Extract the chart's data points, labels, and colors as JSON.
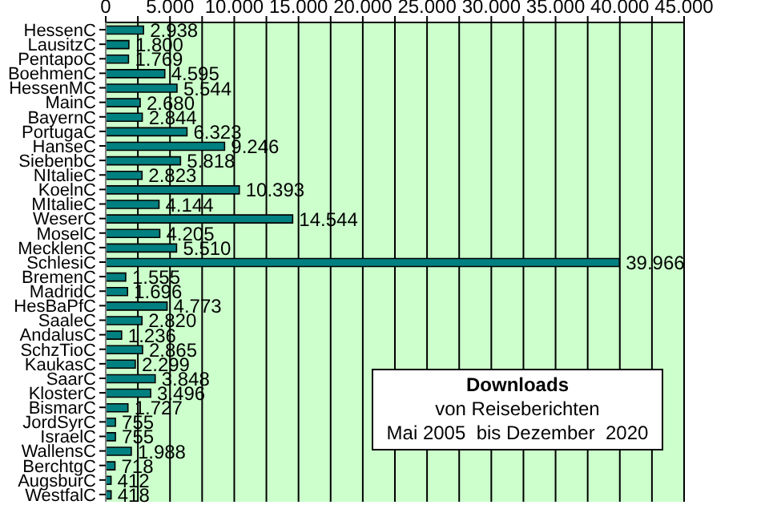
{
  "chart_data": {
    "type": "bar",
    "orientation": "horizontal",
    "title": "Downloads",
    "subtitle": "von Reiseberichten",
    "annotations": [
      "Mai 2005  bis Dezember  2020"
    ],
    "categories": [
      "HessenC",
      "LausitzC",
      "PentapoC",
      "BoehmenC",
      "HessenMC",
      "MainC",
      "BayernC",
      "PortugaC",
      "HanseC",
      "SiebenbC",
      "NItalieC",
      "KoelnC",
      "MItalieC",
      "WeserC",
      "MoselC",
      "MecklenC",
      "SchlesiC",
      "BremenC",
      "MadridC",
      "HesBaPfC",
      "SaaleC",
      "AndalusC",
      "SchzTioC",
      "KaukasC",
      "SaarC",
      "KlosterC",
      "BismarC",
      "JordSyrC",
      "IsraelC",
      "WallensC",
      "BerchtgC",
      "AugsburC",
      "WestfalC"
    ],
    "values": [
      2938,
      1800,
      1769,
      4595,
      5544,
      2680,
      2844,
      6323,
      9246,
      5818,
      2823,
      10393,
      4144,
      14544,
      4205,
      5510,
      39966,
      1555,
      1696,
      4773,
      2820,
      1236,
      2865,
      2299,
      3848,
      3496,
      1727,
      755,
      755,
      1988,
      718,
      412,
      418
    ],
    "value_labels": [
      "2.938",
      "1.800",
      "1.769",
      "4.595",
      "5.544",
      "2.680",
      "2.844",
      "6.323",
      "9.246",
      "5.818",
      "2.823",
      "10.393",
      "4.144",
      "14.544",
      "4.205",
      "5.510",
      "39.966",
      "1.555",
      "1.696",
      "4.773",
      "2.820",
      "1.236",
      "2.865",
      "2.299",
      "3.848",
      "3.496",
      "1.727",
      "755",
      "755",
      "1.988",
      "718",
      "412",
      "418"
    ],
    "color": "#008080",
    "xlim": [
      0,
      45000
    ],
    "xticks": [
      {
        "value": 0,
        "label": "0"
      },
      {
        "value": 2500,
        "label": null
      },
      {
        "value": 5000,
        "label": "5.000"
      },
      {
        "value": 7500,
        "label": null
      },
      {
        "value": 10000,
        "label": "10.000"
      },
      {
        "value": 12500,
        "label": null
      },
      {
        "value": 15000,
        "label": "15.000"
      },
      {
        "value": 17500,
        "label": null
      },
      {
        "value": 20000,
        "label": "20.000"
      },
      {
        "value": 22500,
        "label": null
      },
      {
        "value": 25000,
        "label": "25.000"
      },
      {
        "value": 27500,
        "label": null
      },
      {
        "value": 30000,
        "label": "30.000"
      },
      {
        "value": 32500,
        "label": null
      },
      {
        "value": 35000,
        "label": "35.000"
      },
      {
        "value": 37500,
        "label": null
      },
      {
        "value": 40000,
        "label": "40.000"
      },
      {
        "value": 42500,
        "label": null
      },
      {
        "value": 45000,
        "label": "45.000"
      }
    ],
    "grid": "x"
  }
}
